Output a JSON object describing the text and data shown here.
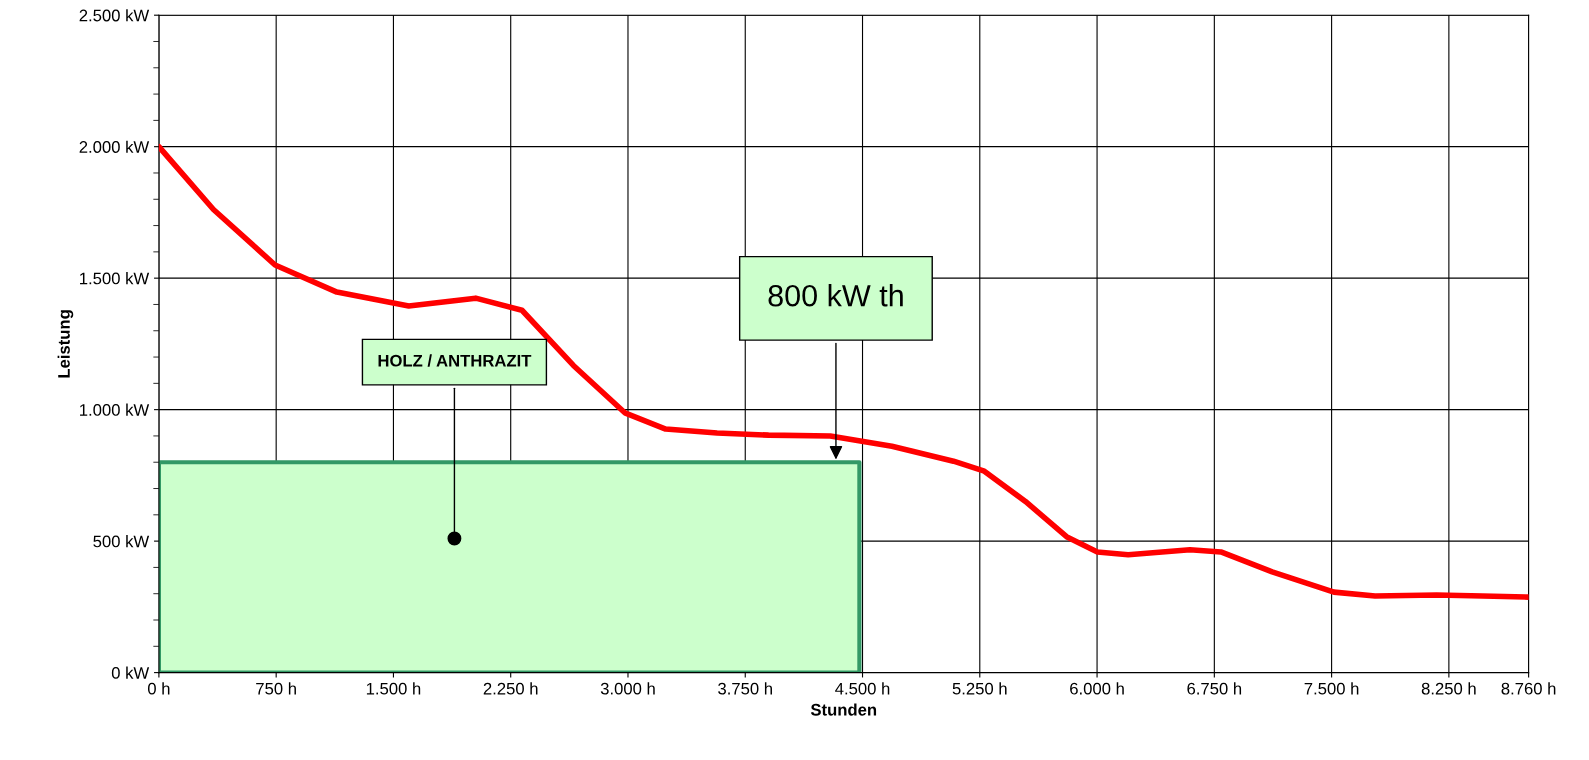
{
  "chart_data": {
    "type": "line",
    "xlabel": "Stunden",
    "ylabel": "Leistung",
    "xlim": [
      0,
      8760
    ],
    "ylim": [
      0,
      2500
    ],
    "xticks": [
      {
        "value": 0,
        "label": "0 h"
      },
      {
        "value": 750,
        "label": "750 h"
      },
      {
        "value": 1500,
        "label": "1.500 h"
      },
      {
        "value": 2250,
        "label": "2.250 h"
      },
      {
        "value": 3000,
        "label": "3.000 h"
      },
      {
        "value": 3750,
        "label": "3.750 h"
      },
      {
        "value": 4500,
        "label": "4.500 h"
      },
      {
        "value": 5250,
        "label": "5.250 h"
      },
      {
        "value": 6000,
        "label": "6.000 h"
      },
      {
        "value": 6750,
        "label": "6.750 h"
      },
      {
        "value": 7500,
        "label": "7.500 h"
      },
      {
        "value": 8250,
        "label": "8.250 h"
      },
      {
        "value": 8760,
        "label": "8.760 h"
      }
    ],
    "yticks": [
      {
        "value": 0,
        "label": "0 kW"
      },
      {
        "value": 500,
        "label": "500 kW"
      },
      {
        "value": 1000,
        "label": "1.000 kW"
      },
      {
        "value": 1500,
        "label": "1.500 kW"
      },
      {
        "value": 2000,
        "label": "2.000 kW"
      },
      {
        "value": 2500,
        "label": "2.500 kW"
      }
    ],
    "grid": true,
    "marker": "none",
    "line_style": "solid",
    "series": [
      {
        "type": "area",
        "color": "#ccffcc",
        "x": [
          0,
          4480
        ],
        "values": [
          800,
          800
        ]
      },
      {
        "color": "#ff0000",
        "x": [
          0,
          349,
          743,
          1138,
          1598,
          2026,
          2322,
          2651,
          2980,
          3241,
          3570,
          3899,
          4294,
          4688,
          5082,
          5279,
          5542,
          5805,
          6002,
          6199,
          6594,
          6792,
          7120,
          7515,
          7778,
          8172,
          8466,
          8760
        ],
        "values": [
          2000,
          1761,
          1550,
          1447,
          1394,
          1424,
          1378,
          1168,
          988,
          926,
          911,
          903,
          900,
          861,
          804,
          766,
          651,
          517,
          459,
          448,
          467,
          459,
          383,
          306,
          291,
          295,
          291,
          287
        ]
      }
    ],
    "annotations": [
      {
        "text": "HOLZ / ANTHRAZIT",
        "x": 1890,
        "y": 510
      },
      {
        "text": "800 kW th",
        "x": 4330,
        "y": 800
      }
    ]
  }
}
